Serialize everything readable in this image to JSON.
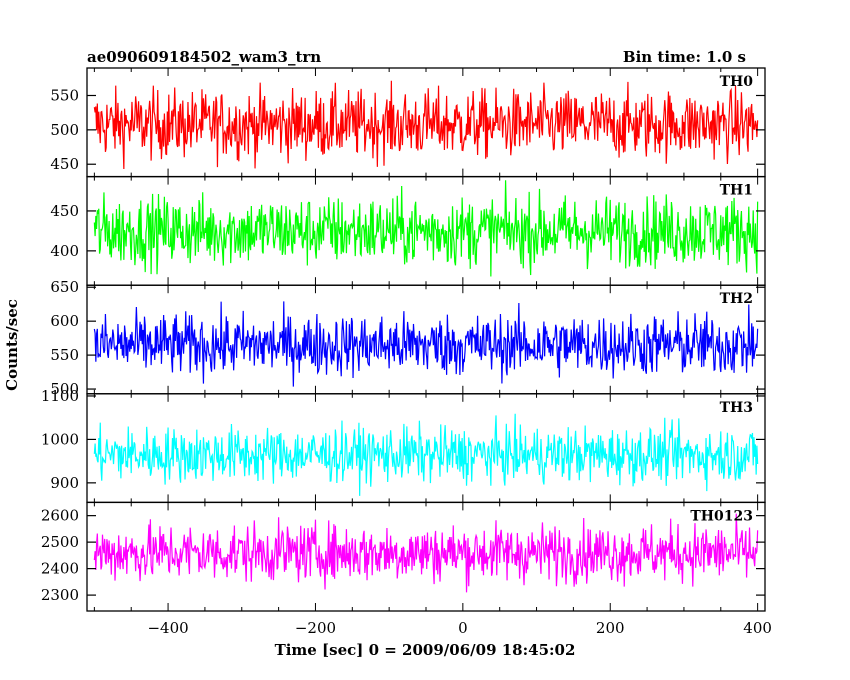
{
  "header": {
    "title": "ae090609184502_wam3_trn",
    "bin_time": "Bin time: 1.0 s"
  },
  "chart_data": {
    "type": "line",
    "title": "ae090609184502_wam3_trn",
    "xlabel": "Time [sec] 0 = 2009/06/09 18:45:02",
    "ylabel": "Counts/sec",
    "xlim": [
      -510,
      410
    ],
    "xticks": [
      -400,
      -200,
      0,
      200,
      400
    ],
    "x_start": -500,
    "x_end": 400,
    "x_step": 1,
    "grid": false,
    "panels": [
      {
        "name": "TH0",
        "color": "#ff0000",
        "ylim": [
          432,
          590
        ],
        "yticks": [
          450,
          500,
          550
        ],
        "mean": 508,
        "noise": 25
      },
      {
        "name": "TH1",
        "color": "#00ff00",
        "ylim": [
          357,
          493
        ],
        "yticks": [
          400,
          450
        ],
        "mean": 425,
        "noise": 22
      },
      {
        "name": "TH2",
        "color": "#0000ff",
        "ylim": [
          493,
          653
        ],
        "yticks": [
          500,
          550,
          600,
          650
        ],
        "mean": 565,
        "noise": 23
      },
      {
        "name": "TH3",
        "color": "#00ffff",
        "ylim": [
          855,
          1105
        ],
        "yticks": [
          900,
          1000,
          1100
        ],
        "mean": 965,
        "noise": 32
      },
      {
        "name": "TH0123",
        "color": "#ff00ff",
        "ylim": [
          2240,
          2650
        ],
        "yticks": [
          2300,
          2400,
          2500,
          2600
        ],
        "mean": 2460,
        "noise": 55
      }
    ]
  }
}
